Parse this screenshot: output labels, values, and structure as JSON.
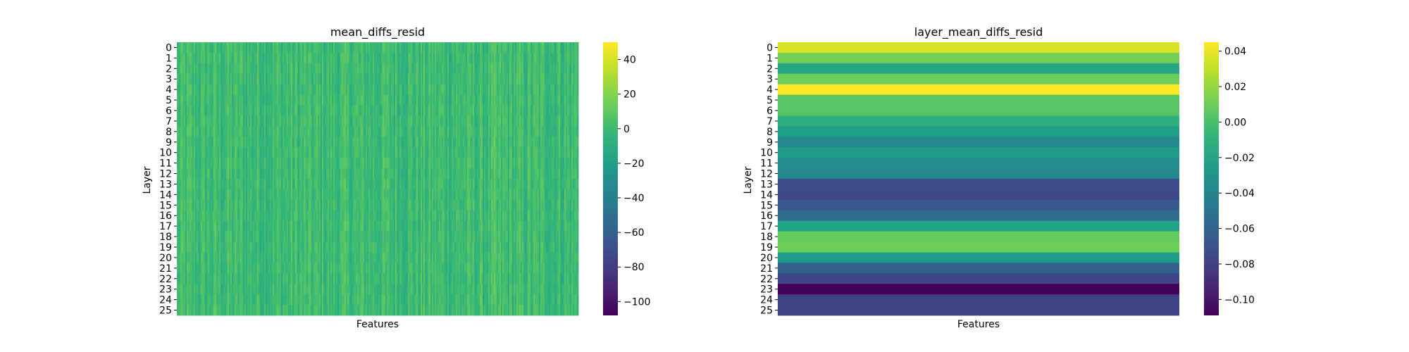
{
  "chart_data": [
    {
      "type": "heatmap",
      "title": "mean_diffs_resid",
      "xlabel": "Features",
      "ylabel": "Layer",
      "y_categories": [
        "0",
        "1",
        "2",
        "3",
        "4",
        "5",
        "6",
        "7",
        "8",
        "9",
        "10",
        "11",
        "12",
        "13",
        "14",
        "15",
        "16",
        "17",
        "18",
        "19",
        "20",
        "21",
        "22",
        "23",
        "24",
        "25"
      ],
      "x_ticks_shown": false,
      "colormap": "viridis",
      "colorbar": {
        "min": -108,
        "max": 50,
        "ticks": [
          40,
          20,
          0,
          -20,
          -40,
          -60,
          -80,
          -100
        ]
      },
      "typical_value": 0,
      "noise_amplitude": 12,
      "note_columns": "dense per-feature values, many columns"
    },
    {
      "type": "heatmap",
      "title": "layer_mean_diffs_resid",
      "xlabel": "Features",
      "ylabel": "Layer",
      "y_categories": [
        "0",
        "1",
        "2",
        "3",
        "4",
        "5",
        "6",
        "7",
        "8",
        "9",
        "10",
        "11",
        "12",
        "13",
        "14",
        "15",
        "16",
        "17",
        "18",
        "19",
        "20",
        "21",
        "22",
        "23",
        "24",
        "25"
      ],
      "x_ticks_shown": false,
      "colormap": "viridis",
      "colorbar": {
        "min": -0.109,
        "max": 0.045,
        "ticks": [
          0.04,
          0.02,
          0.0,
          -0.02,
          -0.04,
          -0.06,
          -0.08,
          -0.1
        ]
      },
      "colorbar_tick_labels": [
        "0.04",
        "0.02",
        "0.00",
        "−0.02",
        "−0.04",
        "−0.06",
        "−0.08",
        "−0.10"
      ],
      "row_values": [
        0.036,
        0.012,
        -0.018,
        0.01,
        0.045,
        0.004,
        0.004,
        -0.012,
        -0.022,
        -0.038,
        -0.025,
        -0.035,
        -0.037,
        -0.073,
        -0.075,
        -0.065,
        -0.055,
        -0.02,
        0.008,
        0.01,
        -0.025,
        -0.062,
        -0.078,
        -0.108,
        -0.078,
        -0.078
      ]
    }
  ],
  "colors": {
    "viridis_stops": [
      "#440154",
      "#482878",
      "#3e4989",
      "#31688e",
      "#26828e",
      "#1f9e89",
      "#35b779",
      "#6ece58",
      "#b5de2b",
      "#fde725"
    ]
  }
}
